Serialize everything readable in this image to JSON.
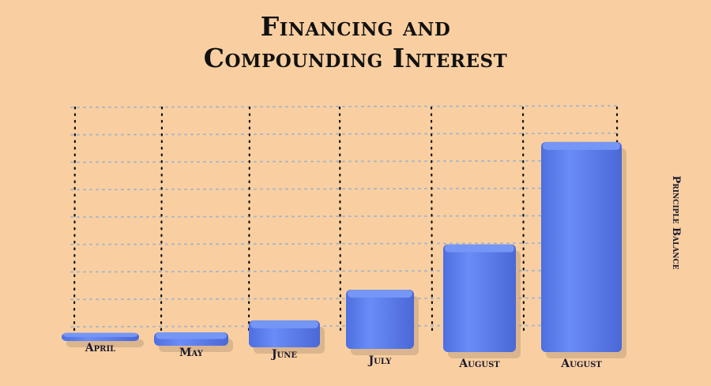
{
  "chart_data": {
    "type": "bar",
    "title_line1": "Financing and",
    "title_line2": "Compounding Interest",
    "ylabel": "Principle Balance",
    "xlabel": "",
    "categories": [
      "April",
      "May",
      "June",
      "July",
      "August",
      "August"
    ],
    "values": [
      3,
      5,
      10,
      22,
      40,
      78
    ],
    "ylim": [
      0,
      85
    ],
    "grid": true,
    "legend": "none",
    "colors": {
      "bar": "#5b7ff0",
      "bar_top": "#7596f5",
      "bar_side": "#3e5fc7",
      "grid_h": "#a8b6c8",
      "grid_v": "#111111",
      "background": "#f9cfa1"
    }
  }
}
